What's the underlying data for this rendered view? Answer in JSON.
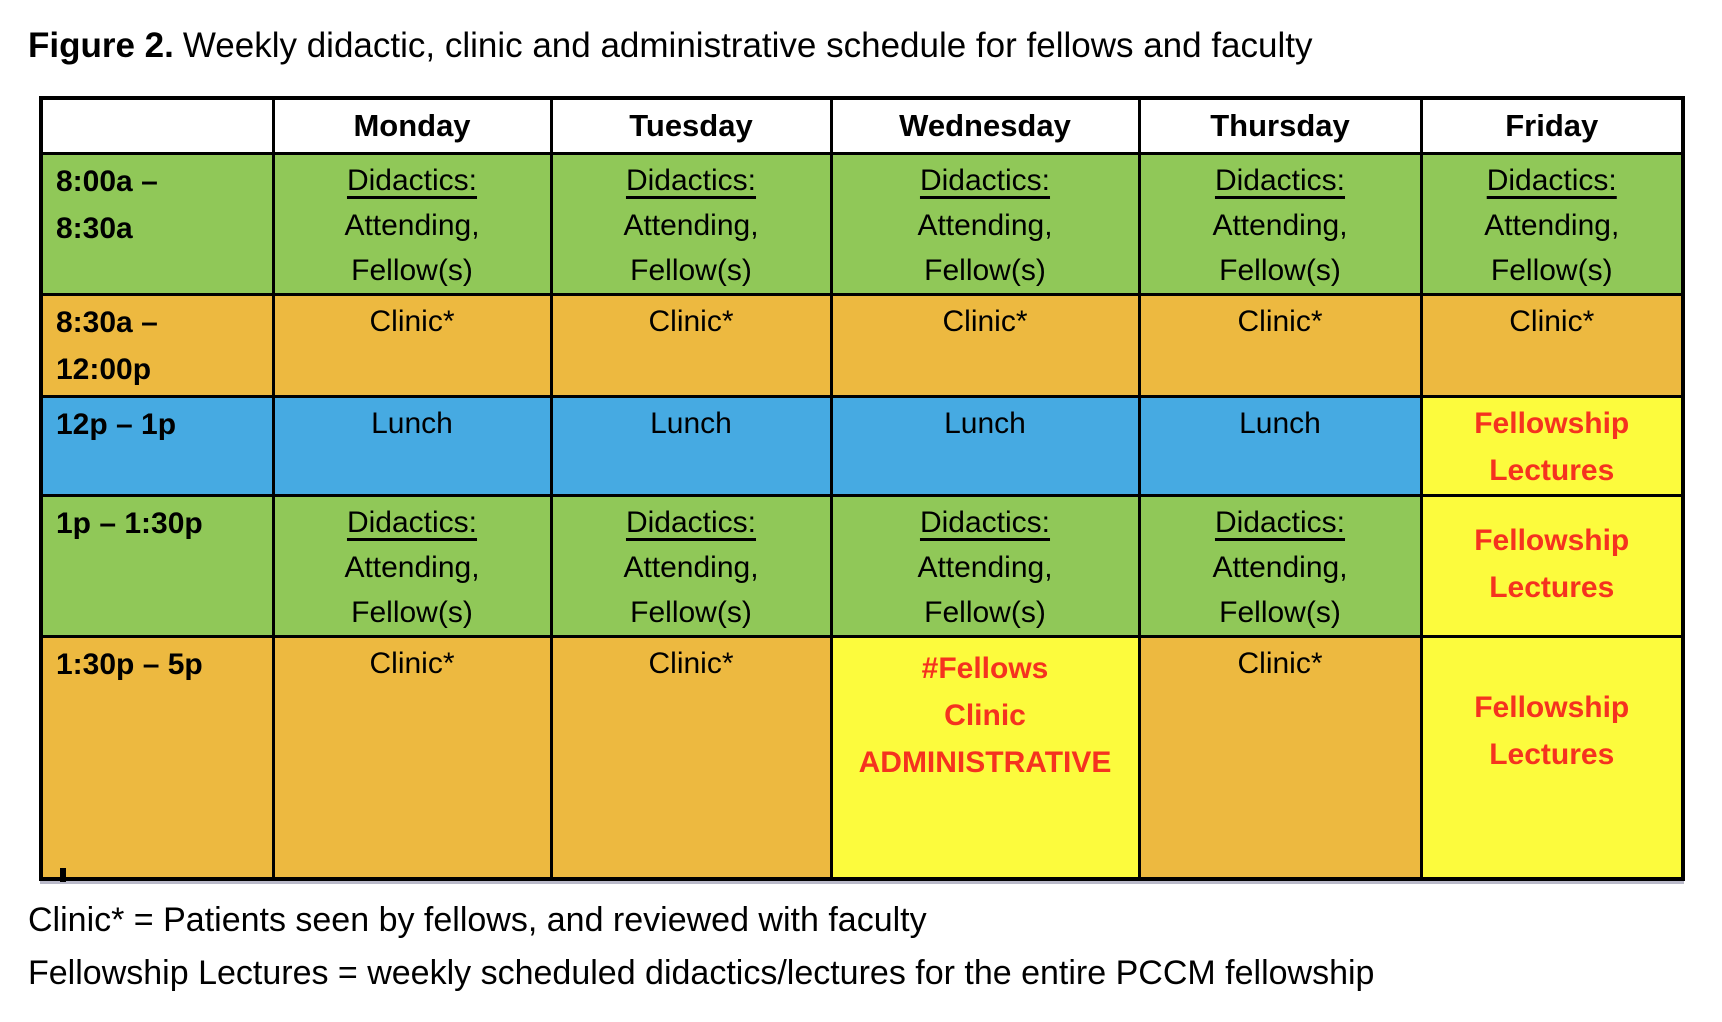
{
  "figure": {
    "label": "Figure 2.",
    "caption": "Weekly didactic, clinic and administrative schedule for fellows and faculty"
  },
  "colors": {
    "green": "#90c858",
    "orange": "#edb940",
    "blue": "#46aae2",
    "yellow": "#fcfb3d",
    "red_text": "#f5321f",
    "border": "#000000"
  },
  "schedule": {
    "header": [
      "",
      "Monday",
      "Tuesday",
      "Wednesday",
      "Thursday",
      "Friday"
    ],
    "rows": [
      {
        "time": [
          "8:00a –",
          "8:30a"
        ],
        "time_bg": "green",
        "cells": [
          {
            "kind": "didactics",
            "bg": "green",
            "lines": [
              "Didactics:",
              "Attending,",
              "Fellow(s)"
            ]
          },
          {
            "kind": "didactics",
            "bg": "green",
            "lines": [
              "Didactics:",
              "Attending,",
              "Fellow(s)"
            ]
          },
          {
            "kind": "didactics",
            "bg": "green",
            "lines": [
              "Didactics:",
              "Attending,",
              "Fellow(s)"
            ]
          },
          {
            "kind": "didactics",
            "bg": "green",
            "lines": [
              "Didactics:",
              "Attending,",
              "Fellow(s)"
            ]
          },
          {
            "kind": "didactics",
            "bg": "green",
            "lines": [
              "Didactics:",
              "Attending,",
              "Fellow(s)"
            ]
          }
        ]
      },
      {
        "time": [
          "8:30a –",
          "12:00p"
        ],
        "time_bg": "orange",
        "cells": [
          {
            "kind": "clinic",
            "bg": "orange",
            "lines": [
              "Clinic*"
            ]
          },
          {
            "kind": "clinic",
            "bg": "orange",
            "lines": [
              "Clinic*"
            ]
          },
          {
            "kind": "clinic",
            "bg": "orange",
            "lines": [
              "Clinic*"
            ]
          },
          {
            "kind": "clinic",
            "bg": "orange",
            "lines": [
              "Clinic*"
            ]
          },
          {
            "kind": "clinic",
            "bg": "orange",
            "lines": [
              "Clinic*"
            ]
          }
        ]
      },
      {
        "time": [
          "12p – 1p"
        ],
        "time_bg": "blue",
        "cells": [
          {
            "kind": "lunch",
            "bg": "blue",
            "lines": [
              "Lunch"
            ]
          },
          {
            "kind": "lunch",
            "bg": "blue",
            "lines": [
              "Lunch"
            ]
          },
          {
            "kind": "lunch",
            "bg": "blue",
            "lines": [
              "Lunch"
            ]
          },
          {
            "kind": "lunch",
            "bg": "blue",
            "lines": [
              "Lunch"
            ]
          },
          {
            "kind": "fellowship",
            "bg": "yellow",
            "lines": [
              "Fellowship",
              "Lectures"
            ]
          }
        ]
      },
      {
        "time": [
          "1p – 1:30p"
        ],
        "time_bg": "green",
        "cells": [
          {
            "kind": "didactics",
            "bg": "green",
            "lines": [
              "Didactics:",
              "Attending,",
              "Fellow(s)"
            ]
          },
          {
            "kind": "didactics",
            "bg": "green",
            "lines": [
              "Didactics:",
              "Attending,",
              "Fellow(s)"
            ]
          },
          {
            "kind": "didactics",
            "bg": "green",
            "lines": [
              "Didactics:",
              "Attending,",
              "Fellow(s)"
            ]
          },
          {
            "kind": "didactics",
            "bg": "green",
            "lines": [
              "Didactics:",
              "Attending,",
              "Fellow(s)"
            ]
          },
          {
            "kind": "fellowship",
            "bg": "yellow",
            "lines": [
              "Fellowship",
              "Lectures"
            ]
          }
        ]
      },
      {
        "time": [
          "1:30p – 5p"
        ],
        "time_bg": "orange",
        "cells": [
          {
            "kind": "clinic",
            "bg": "orange",
            "lines": [
              "Clinic*"
            ]
          },
          {
            "kind": "clinic",
            "bg": "orange",
            "lines": [
              "Clinic*"
            ]
          },
          {
            "kind": "admin",
            "bg": "yellow",
            "lines": [
              "#Fellows",
              "Clinic",
              "ADMINISTRATIVE"
            ]
          },
          {
            "kind": "clinic",
            "bg": "orange",
            "lines": [
              "Clinic*"
            ]
          },
          {
            "kind": "fellowship",
            "bg": "yellow",
            "lines": [
              "Fellowship",
              "Lectures"
            ]
          }
        ]
      }
    ]
  },
  "legend": {
    "clinic": "Clinic* = Patients seen by fellows, and reviewed with faculty",
    "fellowship": "Fellowship Lectures = weekly scheduled didactics/lectures for the entire PCCM fellowship"
  }
}
